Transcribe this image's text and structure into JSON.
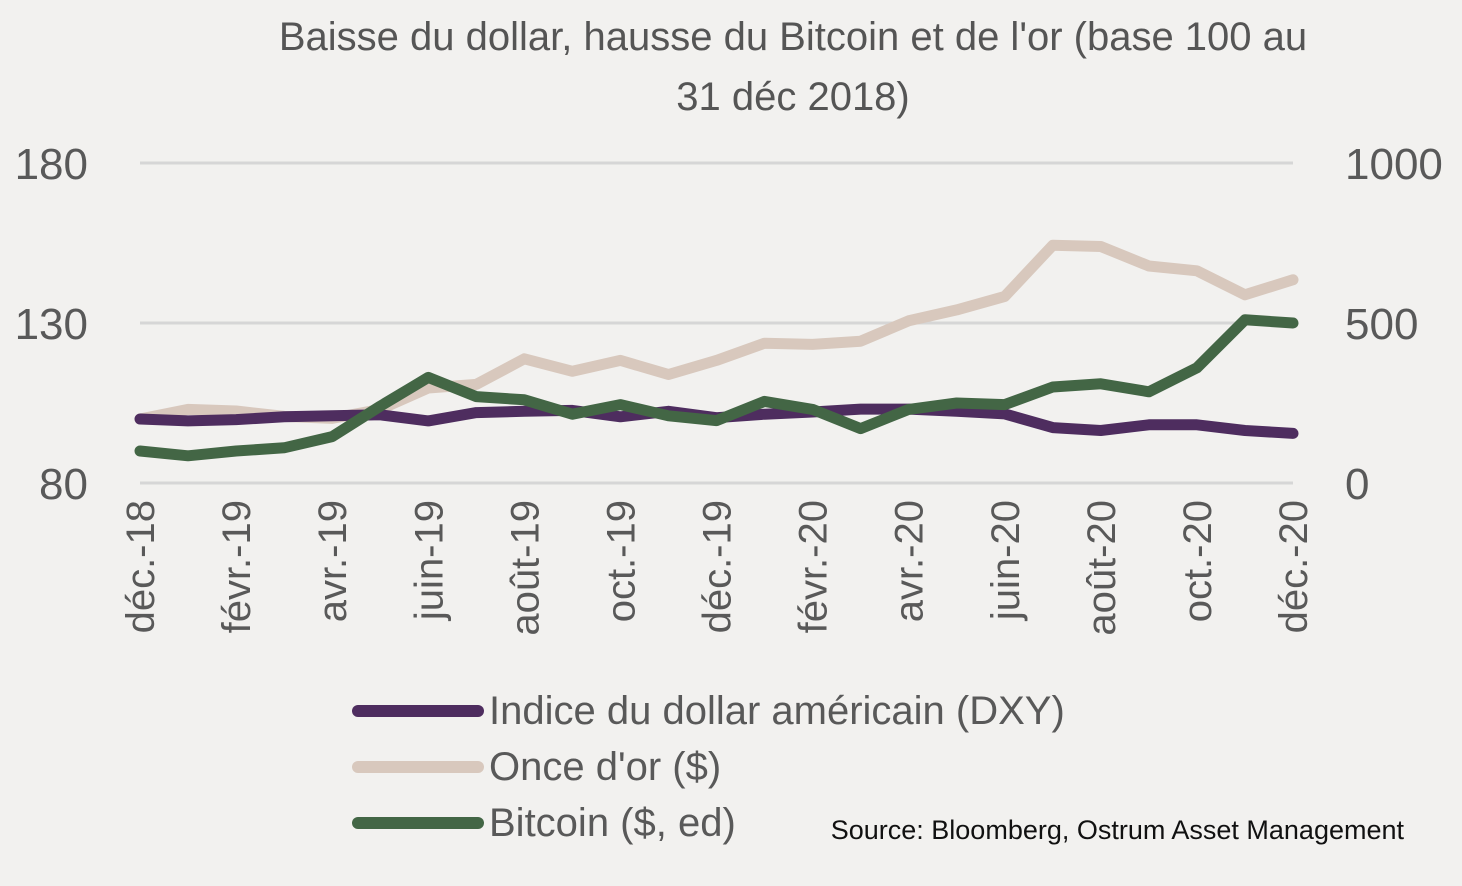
{
  "chart_data": {
    "type": "line",
    "title": "Baisse du dollar, hausse du Bitcoin et de l'or (base 100 au 31 déc 2018)",
    "title_lines": [
      "Baisse du dollar, hausse du Bitcoin et de l'or (base 100 au",
      "31 déc 2018)"
    ],
    "source": "Source: Bloomberg, Ostrum Asset Management",
    "x": [
      "déc.-18",
      "janv.-19",
      "févr.-19",
      "mars-19",
      "avr.-19",
      "mai-19",
      "juin-19",
      "juil.-19",
      "août-19",
      "sept.-19",
      "oct.-19",
      "nov.-19",
      "déc.-19",
      "janv.-20",
      "févr.-20",
      "mars-20",
      "avr.-20",
      "mai-20",
      "juin-20",
      "juil.-20",
      "août-20",
      "sept.-20",
      "oct.-20",
      "nov.-20",
      "déc.-20"
    ],
    "x_tick_labels": [
      "déc.-18",
      "",
      "févr.-19",
      "",
      "avr.-19",
      "",
      "juin-19",
      "",
      "août-19",
      "",
      "oct.-19",
      "",
      "déc.-19",
      "",
      "févr.-20",
      "",
      "avr.-20",
      "",
      "juin-20",
      "",
      "août-20",
      "",
      "oct.-20",
      "",
      "déc.-20"
    ],
    "y_left": {
      "range": [
        80,
        180
      ],
      "ticks": [
        80,
        130,
        180
      ]
    },
    "y_right": {
      "range": [
        0,
        1000
      ],
      "ticks": [
        0,
        500,
        1000
      ]
    },
    "grid": true,
    "legend_position": "bottom-left",
    "series": [
      {
        "name": "Indice du dollar américain (DXY)",
        "axis": "left",
        "color": "#4e2d5f",
        "values": [
          100,
          99.4,
          99.8,
          100.7,
          101,
          101.3,
          99.4,
          102,
          102.4,
          102.7,
          100.7,
          102.4,
          100.4,
          101.5,
          102.2,
          103.1,
          103.1,
          102.4,
          101.6,
          97.3,
          96.4,
          98.2,
          98.2,
          96.4,
          95.5
        ]
      },
      {
        "name": "Once d'or ($)",
        "axis": "left",
        "color": "#d8c8bd",
        "values": [
          100,
          103,
          102.5,
          100.8,
          100.2,
          103,
          109.7,
          110.8,
          118.8,
          114.9,
          118.3,
          113.9,
          118.3,
          123.7,
          123.3,
          124.3,
          130.7,
          134.1,
          138.3,
          154.3,
          153.9,
          147.8,
          146.3,
          138.8,
          143.5
        ]
      },
      {
        "name": "Bitcoin ($, ed)",
        "axis": "right",
        "color": "#436645",
        "values": [
          100,
          85,
          100,
          110,
          145,
          240,
          330,
          270,
          260,
          215,
          245,
          210,
          195,
          255,
          230,
          170,
          230,
          250,
          245,
          300,
          310,
          285,
          360,
          510,
          500
        ]
      }
    ]
  }
}
